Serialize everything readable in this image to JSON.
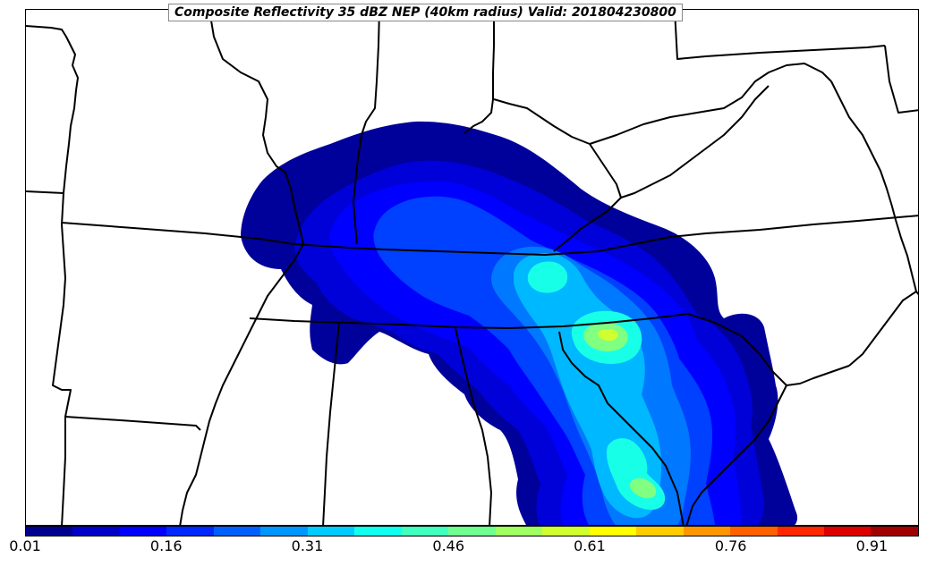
{
  "title": "Composite Reflectivity 35 dBZ NEP (40km radius) Valid: 201804230800",
  "colorbar": {
    "colors": [
      "#00008f",
      "#0000c8",
      "#0000ff",
      "#0028ff",
      "#0060ff",
      "#0096ff",
      "#00ccff",
      "#10ffef",
      "#40ffbf",
      "#70ff8f",
      "#a0ff60",
      "#d0ff30",
      "#ffff00",
      "#ffcc00",
      "#ff9600",
      "#ff6000",
      "#ff2800",
      "#dc0000",
      "#a00000"
    ],
    "ticks": [
      "0.01",
      "0.16",
      "0.31",
      "0.46",
      "0.61",
      "0.76",
      "0.91"
    ]
  },
  "field_palette": {
    "lv1": "#00009a",
    "lv2": "#0000d8",
    "lv3": "#0000ff",
    "lv4": "#0040ff",
    "lv5": "#0078ff",
    "lv6": "#00b8ff",
    "lv7": "#18ffe8",
    "lv8": "#80ff80",
    "lv9": "#d0ff30"
  }
}
